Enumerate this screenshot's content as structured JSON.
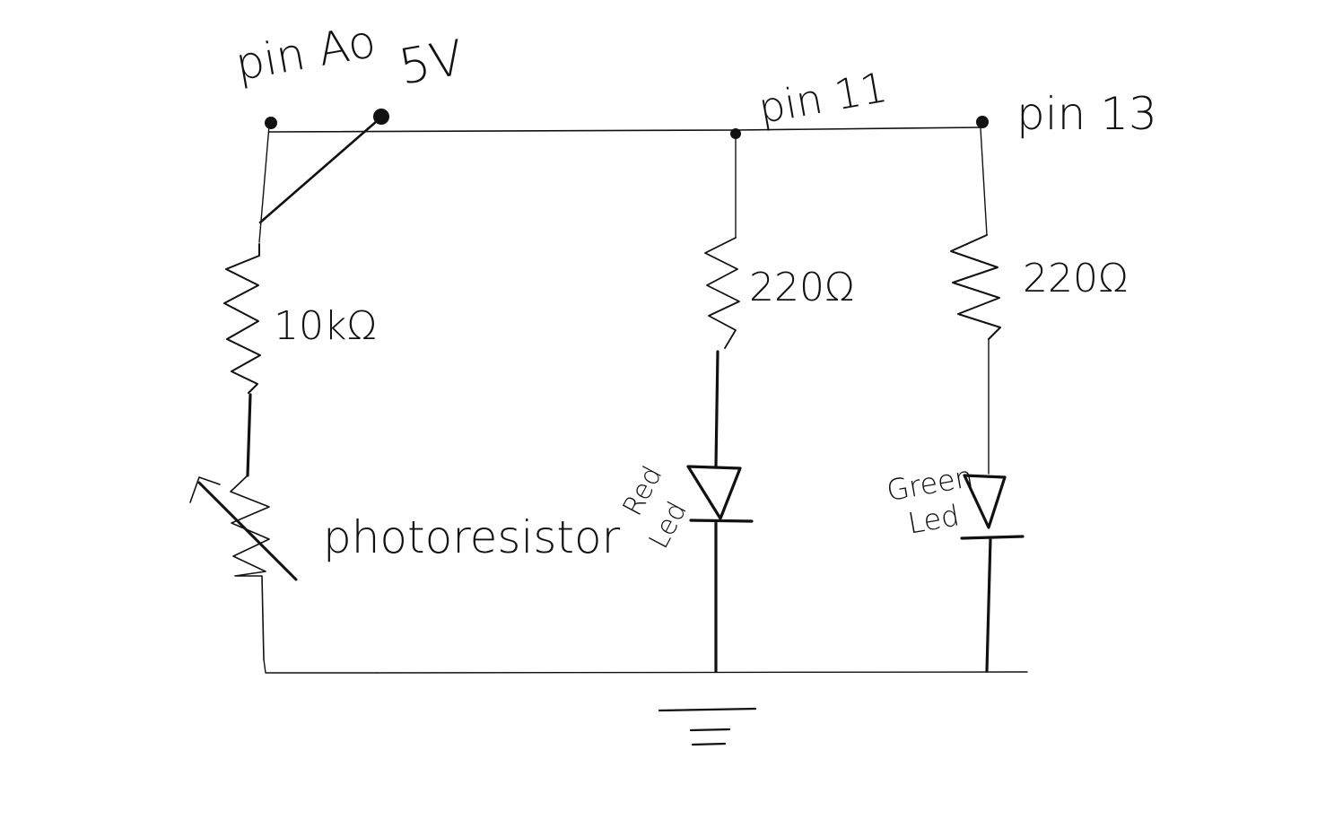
{
  "labels": {
    "pin_a0": "pin Ao",
    "five_v": "5V",
    "pin_11": "pin 11",
    "pin_13": "pin 13",
    "r_10k": "10kΩ",
    "r_220_a": "220Ω",
    "r_220_b": "220Ω",
    "photoresistor": "photoresistor",
    "red_1": "Red",
    "red_2": "Led",
    "green_1": "Green",
    "green_2": "Led"
  },
  "colors": {
    "ink": "#111111",
    "background": "#ffffff"
  }
}
